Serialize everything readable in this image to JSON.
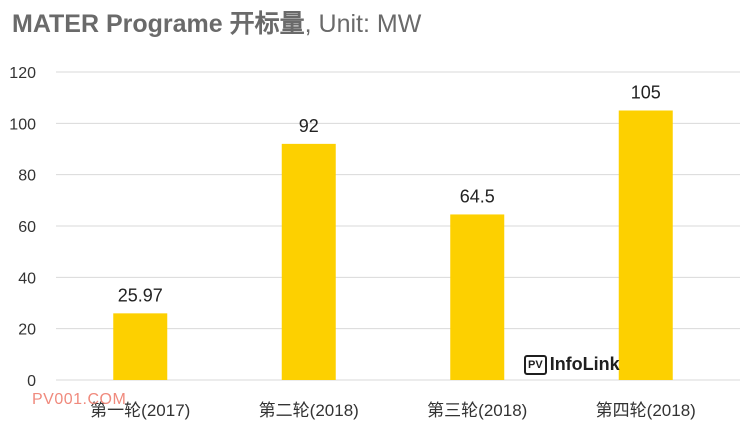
{
  "title": "MATER Programe 开标量",
  "title_unit": ", Unit: MW",
  "watermark": {
    "pv": "PV",
    "brand": "InfoLink"
  },
  "site_mark": "PV001.COM",
  "colors": {
    "bar": "#FDD000",
    "grid": "#D9D9D9",
    "title": "#6A6A6A"
  },
  "chart_data": {
    "type": "bar",
    "categories": [
      "第一轮(2017)",
      "第二轮(2018)",
      "第三轮(2018)",
      "第四轮(2018)"
    ],
    "values": [
      25.97,
      92,
      64.5,
      105
    ],
    "data_labels": [
      "25.97",
      "92",
      "64.5",
      "105"
    ],
    "yticks": [
      "0",
      "20",
      "40",
      "60",
      "80",
      "100",
      "120"
    ],
    "ylim": [
      0,
      120
    ],
    "grid": true,
    "legend": "none"
  }
}
